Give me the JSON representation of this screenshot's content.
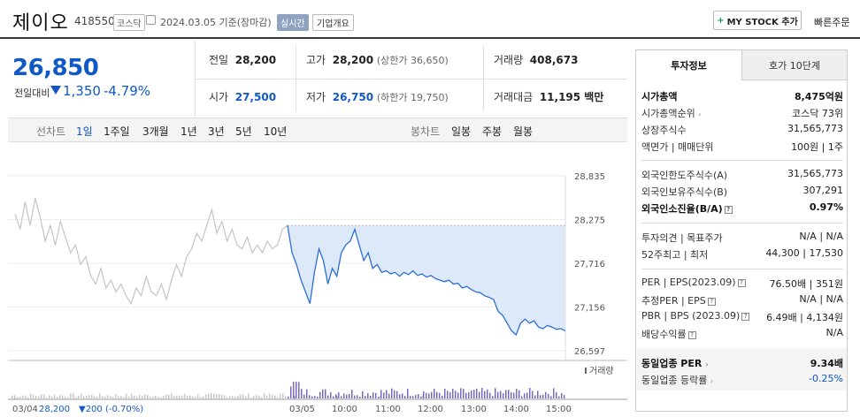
{
  "header": {
    "name": "제이오",
    "code": "418550",
    "market": "코스닥",
    "date": "2024.03.05 기준(장마감)",
    "realtime": "실시간",
    "company_info": "기업개요",
    "mystock": "MY STOCK 추가",
    "quick_order": "빠른주문"
  },
  "summary": {
    "price": "26,850",
    "change_label": "전일대비",
    "change": "1,350",
    "change_rate": "-4.79%"
  },
  "stats": {
    "prev_label": "전일",
    "prev": "28,200",
    "high_label": "고가",
    "high": "28,200",
    "upper_limit": "(상한가 36,650)",
    "volume_label": "거래량",
    "volume": "408,673",
    "open_label": "시가",
    "open": "27,500",
    "low_label": "저가",
    "low": "26,750",
    "lower_limit": "(하한가 19,750)",
    "amount_label": "거래대금",
    "amount": "11,195 백만"
  },
  "periods": {
    "line_label": "선차트",
    "items": [
      "1일",
      "1주일",
      "3개월",
      "1년",
      "3년",
      "5년",
      "10년"
    ],
    "candle_label": "봉차트",
    "candle_items": [
      "일봉",
      "주봉",
      "월봉"
    ]
  },
  "chart_data": {
    "type": "line",
    "y_ticks": [
      "28,835",
      "28,275",
      "27,716",
      "27,156",
      "26,597"
    ],
    "ylim": [
      26597,
      28835
    ],
    "x_ticks": [
      "03/04",
      "03/05",
      "10:00",
      "11:00",
      "12:00",
      "13:00",
      "14:00",
      "15:00"
    ],
    "prev_close": 28200,
    "volume_label": "거래량",
    "footer": {
      "date": "03/04",
      "price": "28,200",
      "change": "▼200",
      "rate": "(-0.70%)"
    },
    "series": [
      {
        "values": [
          28350,
          28150,
          28500,
          28200,
          28550,
          28300,
          28000,
          28200,
          27950,
          28250,
          28050,
          27850,
          27950,
          27700,
          27800,
          27550,
          27450,
          27650,
          27400,
          27500,
          27350,
          27450,
          27300,
          27200,
          27400,
          27300,
          27550,
          27350,
          27300,
          27450,
          27250,
          27500,
          27700,
          27550,
          27800,
          27900,
          28100,
          28000,
          28200,
          28400,
          28100,
          28250,
          28000,
          28150,
          27950,
          27900,
          28050,
          27850,
          27950,
          27850,
          28000,
          27900,
          27950,
          28150,
          28200
        ]
      },
      {
        "values": [
          28200,
          27850,
          27700,
          27500,
          27350,
          27200,
          27600,
          27900,
          27750,
          27450,
          27650,
          27550,
          27850,
          27950,
          28000,
          28150,
          27950,
          27750,
          27850,
          27650,
          27700,
          27600,
          27620,
          27580,
          27600,
          27550,
          27600,
          27570,
          27620,
          27560,
          27580,
          27540,
          27560,
          27520,
          27500,
          27480,
          27500,
          27450,
          27460,
          27400,
          27420,
          27380,
          27350,
          27340,
          27300,
          27280,
          27250,
          27100,
          27050,
          26950,
          26850,
          26800,
          26950,
          27000,
          26950,
          26980,
          26900,
          26880,
          26920,
          26900,
          26870,
          26880,
          26850
        ]
      }
    ]
  },
  "panel": {
    "tab1": "투자정보",
    "tab2": "호가 10단계",
    "rows": [
      {
        "label": "시가총액",
        "value": "8,475억원"
      },
      {
        "label": "시가총액순위",
        "value": "코스닥 73위"
      },
      {
        "label": "상장주식수",
        "value": "31,565,773"
      },
      {
        "label": "액면가 | 매매단위",
        "value": "100원 | 1주"
      },
      {
        "label": "외국인한도주식수(A)",
        "value": "31,565,773"
      },
      {
        "label": "외국인보유주식수(B)",
        "value": "307,291"
      },
      {
        "label": "외국인소진율(B/A)",
        "value": "0.97%"
      },
      {
        "label": "투자의견 | 목표주가",
        "value": "N/A | N/A"
      },
      {
        "label": "52주최고 | 최저",
        "value": "44,300 | 17,530"
      },
      {
        "label": "PER | EPS(2023.09)",
        "value": "76.50배 | 351원"
      },
      {
        "label": "추정PER | EPS",
        "value": "N/A | N/A"
      },
      {
        "label": "PBR | BPS (2023.09)",
        "value": "6.49배 | 4,134원"
      },
      {
        "label": "배당수익률",
        "value": "N/A"
      },
      {
        "label": "동일업종 PER",
        "value": "9.34배"
      },
      {
        "label": "동일업종 등락률",
        "value": "-0.25%"
      }
    ]
  }
}
